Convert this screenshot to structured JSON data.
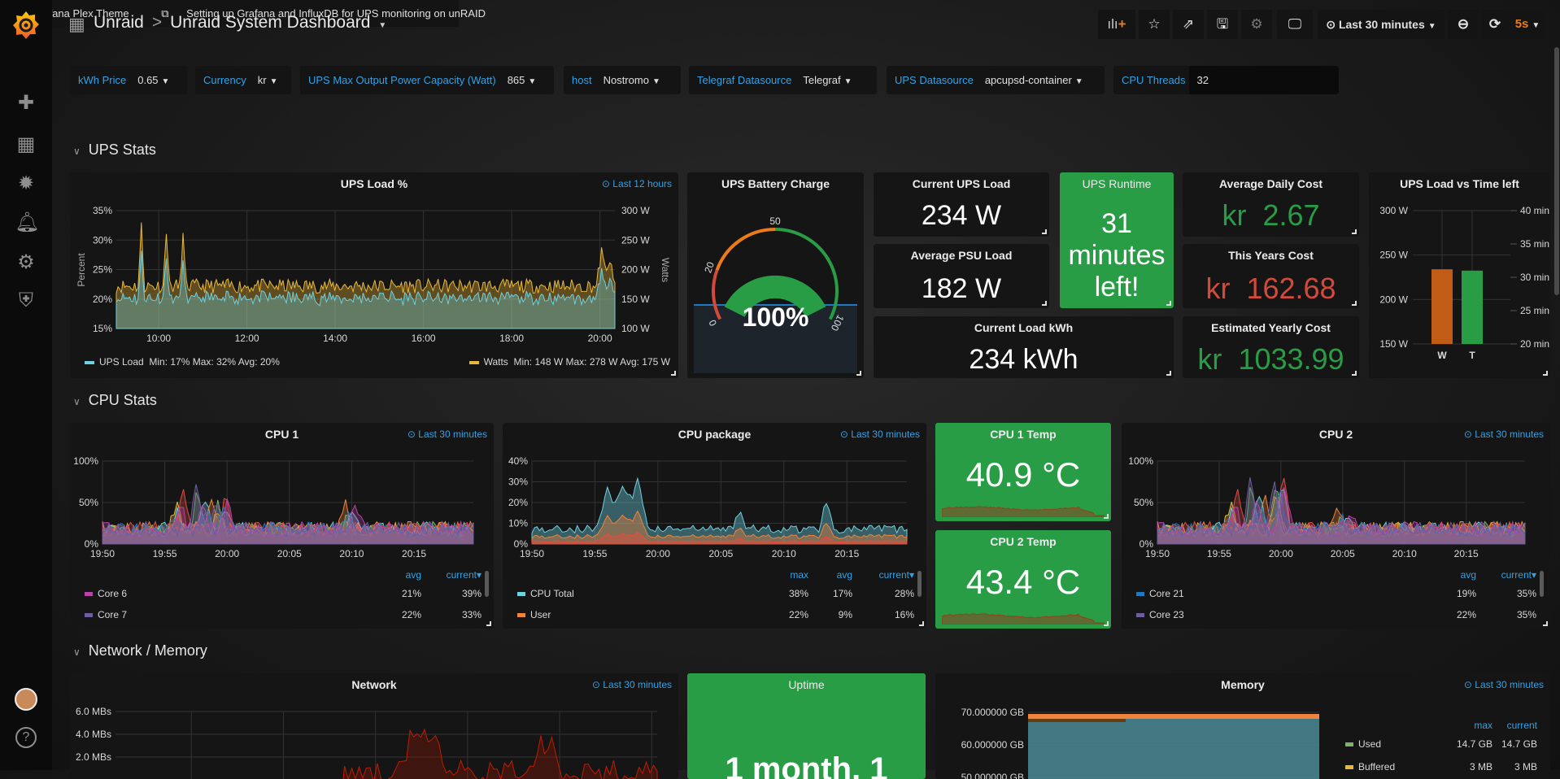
{
  "app": {
    "logo": "grafana-logo",
    "breadcrumb_folder": "Unraid",
    "breadcrumb_sep": ">",
    "dashboard_title": "Unraid System Dashboard"
  },
  "sidebar": {
    "items": [
      {
        "icon": "plus-icon"
      },
      {
        "icon": "dashboards-icon"
      },
      {
        "icon": "explore-icon"
      },
      {
        "icon": "bell-icon"
      },
      {
        "icon": "gear-icon"
      },
      {
        "icon": "shield-icon"
      }
    ],
    "help": "?"
  },
  "toolbar": {
    "time_range": "Last 30 minutes",
    "refresh_interval": "5s",
    "buttons": [
      "add-panel",
      "star",
      "share",
      "save",
      "settings",
      "tv-mode",
      "zoom-out",
      "refresh"
    ]
  },
  "variables": [
    {
      "label": "kWh Price",
      "value": "0.65"
    },
    {
      "label": "Currency",
      "value": "kr"
    },
    {
      "label": "UPS Max Output Power Capacity (Watt)",
      "value": "865"
    },
    {
      "label": "host",
      "value": "Nostromo"
    },
    {
      "label": "Telegraf Datasource",
      "value": "Telegraf"
    },
    {
      "label": "UPS Datasource",
      "value": "apcupsd-container"
    },
    {
      "label": "CPU Threads",
      "value": "32"
    }
  ],
  "links": [
    "Grafana Plex Theme",
    "Setting up Grafana and InfluxDB for UPS monitoring on unRAID"
  ],
  "rows": {
    "ups": "UPS Stats",
    "cpu": "CPU Stats",
    "net": "Network / Memory"
  },
  "colors": {
    "green": "#299c46",
    "red": "#d44a3a",
    "orange": "#eb7b18",
    "blue": "#33a2e5",
    "ups_load": "#6ed0e0",
    "watts": "#eab839"
  },
  "ups_load": {
    "title": "UPS Load %",
    "time": "Last 12 hours",
    "ylabel": "Percent",
    "y2label": "Watts",
    "yticks": [
      "35%",
      "30%",
      "25%",
      "20%",
      "15%"
    ],
    "y2ticks": [
      "300 W",
      "250 W",
      "200 W",
      "150 W",
      "100 W"
    ],
    "xticks": [
      "10:00",
      "12:00",
      "14:00",
      "16:00",
      "18:00",
      "20:00"
    ],
    "legend": [
      {
        "name": "UPS Load",
        "stats": "Min: 17%  Max: 32%  Avg: 20%"
      },
      {
        "name": "Watts",
        "stats": "Min: 148 W  Max: 278 W  Avg: 175 W"
      }
    ]
  },
  "battery": {
    "title": "UPS Battery Charge",
    "value": "100%",
    "percent": 100,
    "thresholds": [
      "0",
      "20",
      "50",
      "100"
    ]
  },
  "stats": {
    "current_load": {
      "title": "Current UPS Load",
      "value": "234 W"
    },
    "avg_psu": {
      "title": "Average PSU Load",
      "value": "182 W"
    },
    "kwh": {
      "title": "Current Load kWh",
      "value": "234 kWh"
    },
    "runtime": {
      "title": "UPS Runtime",
      "line1": "31",
      "line2": "minutes",
      "line3": "left!"
    },
    "daily": {
      "title": "Average Daily Cost",
      "prefix": "kr",
      "value": "2.67"
    },
    "year": {
      "title": "This Years Cost",
      "prefix": "kr",
      "value": "162.68"
    },
    "yearly": {
      "title": "Estimated Yearly Cost",
      "prefix": "kr",
      "value": "1033.99"
    }
  },
  "load_vs_time": {
    "title": "UPS Load vs Time left",
    "yticks": [
      "300 W",
      "250 W",
      "200 W",
      "150 W"
    ],
    "y2ticks": [
      "40 min",
      "35 min",
      "30 min",
      "25 min",
      "20 min"
    ],
    "bars": [
      {
        "label": "W",
        "value": 234,
        "unit": "W",
        "color": "#c15c17"
      },
      {
        "label": "T",
        "value": 31,
        "unit": "min",
        "color": "#299c46"
      }
    ]
  },
  "cpu1": {
    "title": "CPU 1",
    "time": "Last 30 minutes",
    "yticks": [
      "100%",
      "50%",
      "0%"
    ],
    "xticks": [
      "19:50",
      "19:55",
      "20:00",
      "20:05",
      "20:10",
      "20:15"
    ],
    "cols": [
      "avg",
      "current"
    ],
    "rows": [
      {
        "name": "Core 6",
        "color": "#ba43a9",
        "avg": "21%",
        "current": "39%"
      },
      {
        "name": "Core 7",
        "color": "#705da0",
        "avg": "22%",
        "current": "33%"
      }
    ]
  },
  "cpu_pkg": {
    "title": "CPU package",
    "time": "Last 30 minutes",
    "yticks": [
      "40%",
      "30%",
      "20%",
      "10%",
      "0%"
    ],
    "xticks": [
      "19:50",
      "19:55",
      "20:00",
      "20:05",
      "20:10",
      "20:15"
    ],
    "cols": [
      "max",
      "avg",
      "current"
    ],
    "rows": [
      {
        "name": "CPU Total",
        "color": "#6ed0e0",
        "max": "38%",
        "avg": "17%",
        "current": "28%"
      },
      {
        "name": "User",
        "color": "#ef843c",
        "max": "22%",
        "avg": "9%",
        "current": "16%"
      }
    ]
  },
  "cpu1_temp": {
    "title": "CPU 1 Temp",
    "value": "40.9 °C"
  },
  "cpu2_temp": {
    "title": "CPU 2 Temp",
    "value": "43.4 °C"
  },
  "cpu2": {
    "title": "CPU 2",
    "time": "Last 30 minutes",
    "yticks": [
      "100%",
      "50%",
      "0%"
    ],
    "xticks": [
      "19:50",
      "19:55",
      "20:00",
      "20:05",
      "20:10",
      "20:15"
    ],
    "cols": [
      "avg",
      "current"
    ],
    "rows": [
      {
        "name": "Core 21",
        "color": "#1f78c1",
        "avg": "19%",
        "current": "35%"
      },
      {
        "name": "Core 23",
        "color": "#705da0",
        "avg": "22%",
        "current": "35%"
      }
    ]
  },
  "network": {
    "title": "Network",
    "time": "Last 30 minutes",
    "yticks": [
      "6.0 MBs",
      "4.0 MBs",
      "2.0 MBs"
    ]
  },
  "uptime": {
    "title": "Uptime",
    "value": "1 month, 1"
  },
  "memory": {
    "title": "Memory",
    "time": "Last 30 minutes",
    "yticks": [
      "70.000000 GB",
      "60.000000 GB",
      "50.000000 GB"
    ],
    "cols": [
      "max",
      "current"
    ],
    "rows": [
      {
        "name": "Used",
        "color": "#7eb26d",
        "max": "14.7 GB",
        "current": "14.7 GB"
      },
      {
        "name": "Buffered",
        "color": "#eab839",
        "max": "3 MB",
        "current": "3 MB"
      }
    ]
  }
}
